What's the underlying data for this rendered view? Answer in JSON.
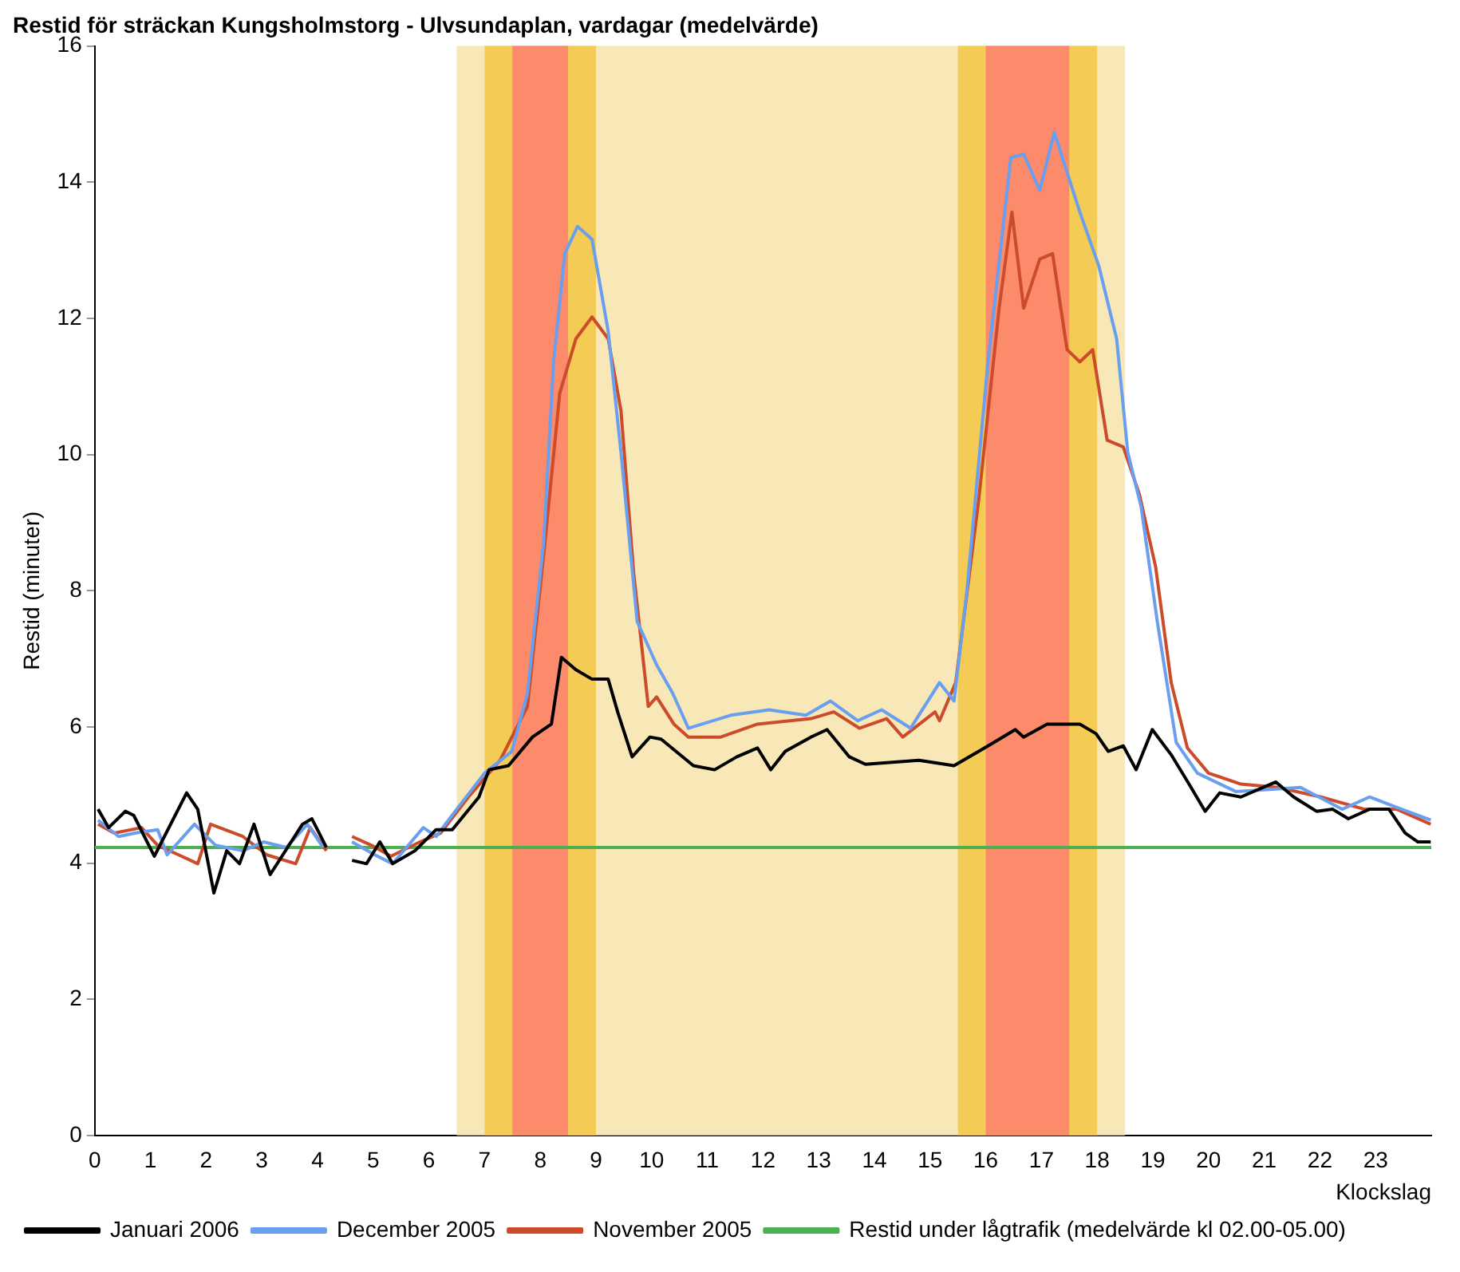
{
  "chart_data": {
    "type": "line",
    "title": "Restid för sträckan Kungsholmstorg - Ulvsundaplan, vardagar (medelvärde)",
    "xlabel": "Klockslag",
    "ylabel": "Restid (minuter)",
    "xlim": [
      0,
      24
    ],
    "xticks": [
      0,
      1,
      2,
      3,
      4,
      5,
      6,
      7,
      8,
      9,
      10,
      11,
      12,
      13,
      14,
      15,
      16,
      17,
      18,
      19,
      20,
      21,
      22,
      23
    ],
    "ylim": [
      0,
      16
    ],
    "yticks": [
      0,
      2,
      4,
      6,
      8,
      10,
      12,
      14,
      16
    ],
    "grid": false,
    "legend": "bottom",
    "marker": "none",
    "line_style": "solid",
    "bands": [
      {
        "axis": "x",
        "from": 6.5,
        "to": 18.5,
        "color": "#f8e8b8"
      },
      {
        "axis": "x",
        "from": 7,
        "to": 9,
        "color": "#f3cb55"
      },
      {
        "axis": "x",
        "from": 7.5,
        "to": 8.5,
        "color": "#fb8b6b"
      },
      {
        "axis": "x",
        "from": 15.5,
        "to": 18,
        "color": "#f3cb55"
      },
      {
        "axis": "x",
        "from": 16,
        "to": 17.5,
        "color": "#fb8b6b"
      }
    ],
    "series": [
      {
        "name": "Januari 2006",
        "color": "#000000",
        "x": [
          0.06,
          0.25,
          0.55,
          0.7,
          1.07,
          1.65,
          1.85,
          2.14,
          2.37,
          2.6,
          2.86,
          3.15,
          3.73,
          3.9,
          4.16,
          4.4,
          4.62,
          4.88,
          5.12,
          5.35,
          5.75,
          6.13,
          6.42,
          6.9,
          7.08,
          7.43,
          7.86,
          8.2,
          8.38,
          8.64,
          8.93,
          9.22,
          9.39,
          9.65,
          9.97,
          10.17,
          10.75,
          11.13,
          11.53,
          11.9,
          12.14,
          12.4,
          12.86,
          13.15,
          13.55,
          13.84,
          14.8,
          15.43,
          16.04,
          16.53,
          16.68,
          17.1,
          17.69,
          17.98,
          18.2,
          18.47,
          18.7,
          18.99,
          19.33,
          19.65,
          19.94,
          20.2,
          20.58,
          21.21,
          21.53,
          21.94,
          22.23,
          22.51,
          22.89,
          23.24,
          23.53,
          23.76,
          23.99
        ],
        "values": [
          4.79,
          4.52,
          4.76,
          4.7,
          4.1,
          5.03,
          4.79,
          3.56,
          4.18,
          3.99,
          4.57,
          3.83,
          4.57,
          4.65,
          4.23,
          null,
          4.04,
          3.99,
          4.31,
          3.99,
          4.18,
          4.49,
          4.49,
          4.97,
          5.37,
          5.43,
          5.85,
          6.04,
          7.02,
          6.84,
          6.7,
          6.7,
          6.22,
          5.56,
          5.85,
          5.82,
          5.43,
          5.37,
          5.56,
          5.69,
          5.37,
          5.64,
          5.85,
          5.96,
          5.56,
          5.45,
          5.51,
          5.43,
          5.72,
          5.96,
          5.85,
          6.04,
          6.04,
          5.9,
          5.64,
          5.72,
          5.37,
          5.96,
          5.59,
          5.16,
          4.76,
          5.03,
          4.97,
          5.19,
          4.97,
          4.76,
          4.79,
          4.65,
          4.79,
          4.79,
          4.44,
          4.31,
          4.31
        ]
      },
      {
        "name": "December 2005",
        "color": "#6a9ff0",
        "x": [
          0.06,
          0.43,
          0.72,
          1.13,
          1.3,
          1.79,
          2.17,
          2.66,
          3.03,
          3.44,
          3.82,
          4.1,
          4.4,
          4.62,
          5.03,
          5.35,
          5.9,
          6.13,
          6.5,
          7.0,
          7.49,
          7.77,
          8.06,
          8.24,
          8.44,
          8.67,
          8.93,
          9.22,
          9.45,
          9.74,
          10.09,
          10.38,
          10.66,
          11.42,
          12.11,
          12.77,
          13.21,
          13.7,
          14.13,
          14.65,
          15.17,
          15.43,
          15.66,
          16.04,
          16.45,
          16.68,
          16.97,
          17.23,
          17.69,
          18.03,
          18.35,
          18.55,
          18.79,
          19.08,
          19.42,
          19.8,
          20.49,
          21.65,
          22.4,
          22.89,
          23.47,
          23.99
        ],
        "values": [
          4.63,
          4.39,
          4.44,
          4.49,
          4.12,
          4.57,
          4.26,
          4.18,
          4.31,
          4.23,
          4.57,
          4.23,
          null,
          4.31,
          4.12,
          3.99,
          4.52,
          4.39,
          4.79,
          5.32,
          5.64,
          6.49,
          8.7,
          11.36,
          12.95,
          13.35,
          13.16,
          11.81,
          10.03,
          7.55,
          6.91,
          6.49,
          5.98,
          6.17,
          6.25,
          6.17,
          6.38,
          6.09,
          6.25,
          5.98,
          6.65,
          6.38,
          7.98,
          11.36,
          14.36,
          14.41,
          13.88,
          14.73,
          13.56,
          12.77,
          11.7,
          10.03,
          9.23,
          7.55,
          5.77,
          5.32,
          5.05,
          5.11,
          4.79,
          4.97,
          4.79,
          4.63
        ]
      },
      {
        "name": "November 2005",
        "color": "#cc4b2a",
        "x": [
          0.06,
          0.35,
          0.84,
          1.13,
          1.56,
          1.85,
          2.08,
          2.66,
          3.09,
          3.61,
          3.87,
          4.16,
          4.4,
          4.62,
          4.97,
          5.32,
          5.84,
          6.21,
          6.71,
          7.28,
          7.77,
          8.06,
          8.35,
          8.64,
          8.93,
          9.22,
          9.45,
          9.68,
          9.94,
          10.09,
          10.4,
          10.66,
          11.24,
          11.9,
          12.86,
          13.27,
          13.73,
          14.22,
          14.51,
          15.09,
          15.17,
          15.46,
          15.87,
          16.24,
          16.47,
          16.68,
          16.97,
          17.2,
          17.46,
          17.69,
          17.92,
          18.18,
          18.47,
          18.76,
          19.05,
          19.33,
          19.62,
          20.0,
          20.58,
          21.24,
          22.02,
          22.8,
          23.38,
          23.99
        ],
        "values": [
          4.57,
          4.44,
          4.52,
          4.26,
          4.1,
          3.99,
          4.57,
          4.39,
          4.12,
          3.99,
          4.52,
          4.18,
          null,
          4.39,
          4.26,
          4.1,
          4.31,
          4.44,
          4.97,
          5.51,
          6.3,
          8.51,
          10.9,
          11.7,
          12.02,
          11.7,
          10.64,
          8.24,
          6.3,
          6.44,
          6.04,
          5.85,
          5.85,
          6.04,
          6.12,
          6.22,
          5.98,
          6.12,
          5.85,
          6.22,
          6.09,
          6.65,
          9.31,
          12.15,
          13.56,
          12.15,
          12.87,
          12.95,
          11.54,
          11.36,
          11.54,
          10.21,
          10.11,
          9.41,
          8.35,
          6.65,
          5.69,
          5.32,
          5.16,
          5.11,
          4.97,
          4.79,
          4.79,
          4.57
        ]
      },
      {
        "name": "Restid under lågtrafik (medelvärde kl 02.00-05.00)",
        "color": "#4caf50",
        "x": [
          0,
          24
        ],
        "values": [
          4.23,
          4.23
        ]
      }
    ]
  }
}
